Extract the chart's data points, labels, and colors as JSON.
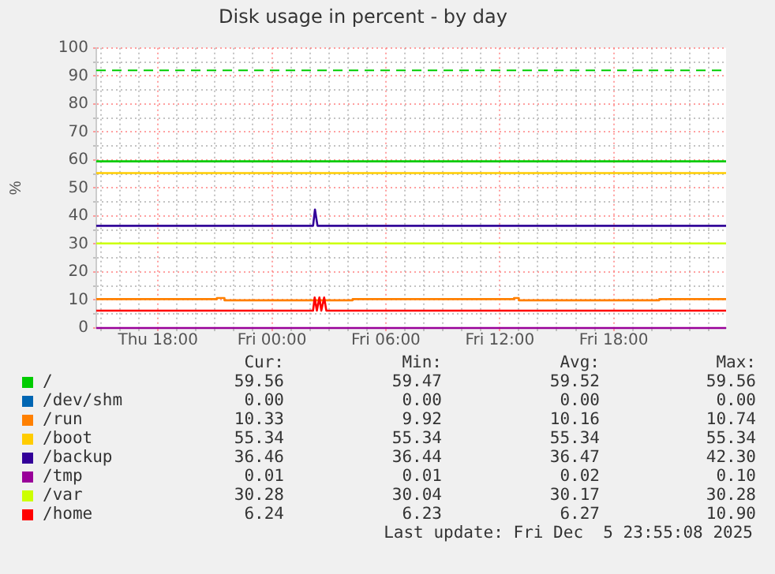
{
  "chart_data": {
    "type": "line",
    "title": "Disk usage in percent - by day",
    "ylabel": "%",
    "xlim": [
      "2025-12-04T14:45",
      "2025-12-05T23:55"
    ],
    "ylim": [
      0,
      100
    ],
    "xticks": [
      {
        "value": "2025-12-04T15:00",
        "label": null
      },
      {
        "value": "2025-12-04T16:00",
        "label": null
      },
      {
        "value": "2025-12-04T17:00",
        "label": null
      },
      {
        "value": "2025-12-04T18:00",
        "label": "Thu 18:00"
      },
      {
        "value": "2025-12-04T19:00",
        "label": null
      },
      {
        "value": "2025-12-04T20:00",
        "label": null
      },
      {
        "value": "2025-12-04T21:00",
        "label": null
      },
      {
        "value": "2025-12-04T22:00",
        "label": null
      },
      {
        "value": "2025-12-04T23:00",
        "label": null
      },
      {
        "value": "2025-12-05T00:00",
        "label": "Fri 00:00"
      },
      {
        "value": "2025-12-05T01:00",
        "label": null
      },
      {
        "value": "2025-12-05T02:00",
        "label": null
      },
      {
        "value": "2025-12-05T03:00",
        "label": null
      },
      {
        "value": "2025-12-05T04:00",
        "label": null
      },
      {
        "value": "2025-12-05T05:00",
        "label": null
      },
      {
        "value": "2025-12-05T06:00",
        "label": "Fri 06:00"
      },
      {
        "value": "2025-12-05T07:00",
        "label": null
      },
      {
        "value": "2025-12-05T08:00",
        "label": null
      },
      {
        "value": "2025-12-05T09:00",
        "label": null
      },
      {
        "value": "2025-12-05T10:00",
        "label": null
      },
      {
        "value": "2025-12-05T11:00",
        "label": null
      },
      {
        "value": "2025-12-05T12:00",
        "label": "Fri 12:00"
      },
      {
        "value": "2025-12-05T13:00",
        "label": null
      },
      {
        "value": "2025-12-05T14:00",
        "label": null
      },
      {
        "value": "2025-12-05T15:00",
        "label": null
      },
      {
        "value": "2025-12-05T16:00",
        "label": null
      },
      {
        "value": "2025-12-05T17:00",
        "label": null
      },
      {
        "value": "2025-12-05T18:00",
        "label": "Fri 18:00"
      },
      {
        "value": "2025-12-05T19:00",
        "label": null
      },
      {
        "value": "2025-12-05T20:00",
        "label": null
      },
      {
        "value": "2025-12-05T21:00",
        "label": null
      },
      {
        "value": "2025-12-05T22:00",
        "label": null
      },
      {
        "value": "2025-12-05T23:00",
        "label": null
      }
    ],
    "yticks": [
      0,
      {
        "value": 5,
        "label": null
      },
      10,
      {
        "value": 15,
        "label": null
      },
      20,
      {
        "value": 25,
        "label": null
      },
      30,
      {
        "value": 35,
        "label": null
      },
      40,
      {
        "value": 45,
        "label": null
      },
      50,
      {
        "value": 55,
        "label": null
      },
      60,
      {
        "value": 65,
        "label": null
      },
      70,
      {
        "value": 75,
        "label": null
      },
      80,
      {
        "value": 85,
        "label": null
      },
      90,
      {
        "value": 95,
        "label": null
      },
      100
    ],
    "grid": true,
    "legend": "bottom",
    "marker": "none",
    "line_style": "solid",
    "ref_lines": [
      {
        "axis": "y",
        "value": 92,
        "color": "#00cc00",
        "line_style": "dashed"
      }
    ],
    "series": [
      {
        "name": "/",
        "color": "#00cc00",
        "x": [
          "2025-12-04T14:45",
          "2025-12-05T23:55"
        ],
        "values": [
          59.5,
          59.5
        ]
      },
      {
        "name": "/dev/shm",
        "color": "#0066b3"
      },
      {
        "name": "/run",
        "color": "#ff8000",
        "x": [
          "2025-12-04T14:45",
          "2025-12-04T21:06",
          "2025-12-04T21:06",
          "2025-12-04T21:30",
          "2025-12-04T21:30",
          "2025-12-05T04:15",
          "2025-12-05T04:15",
          "2025-12-05T12:45",
          "2025-12-05T12:45",
          "2025-12-05T13:00",
          "2025-12-05T13:00",
          "2025-12-05T20:24",
          "2025-12-05T20:24",
          "2025-12-05T23:55"
        ],
        "values": [
          10.3,
          10.3,
          10.7,
          10.7,
          9.9,
          9.9,
          10.3,
          10.3,
          10.7,
          10.7,
          9.9,
          9.9,
          10.3,
          10.3
        ]
      },
      {
        "name": "/boot",
        "color": "#ffcc00",
        "x": [
          "2025-12-04T14:45",
          "2025-12-05T23:55"
        ],
        "values": [
          55.3,
          55.3
        ]
      },
      {
        "name": "/backup",
        "color": "#330099",
        "x": [
          "2025-12-04T14:45",
          "2025-12-05T02:10",
          "2025-12-05T02:16",
          "2025-12-05T02:24",
          "2025-12-05T23:55"
        ],
        "values": [
          36.5,
          36.5,
          42.3,
          36.5,
          36.5
        ]
      },
      {
        "name": "/tmp",
        "color": "#990099",
        "x": [
          "2025-12-04T14:45",
          "2025-12-05T23:55"
        ],
        "values": [
          0,
          0
        ]
      },
      {
        "name": "/var",
        "color": "#ccff00",
        "x": [
          "2025-12-04T14:45",
          "2025-12-05T23:55"
        ],
        "values": [
          30.2,
          30.2
        ]
      },
      {
        "name": "/home",
        "color": "#ff0000",
        "x": [
          "2025-12-04T14:45",
          "2025-12-05T02:10",
          "2025-12-05T02:15",
          "2025-12-05T02:22",
          "2025-12-05T02:30",
          "2025-12-05T02:36",
          "2025-12-05T02:45",
          "2025-12-05T02:52",
          "2025-12-05T23:55"
        ],
        "values": [
          6.2,
          6.2,
          10.9,
          6.2,
          10.9,
          6.2,
          10.9,
          6.2,
          6.2
        ]
      }
    ],
    "annotations": [
      "Cur:",
      "Min:",
      "Avg:",
      "Max:",
      "59.56",
      "59.47",
      "59.52",
      "59.56",
      "0.00",
      "0.00",
      "0.00",
      "0.00",
      "10.33",
      "9.92",
      "10.16",
      "10.74",
      "55.34",
      "55.34",
      "55.34",
      "55.34",
      "36.46",
      "36.44",
      "36.47",
      "42.30",
      "0.01",
      "0.01",
      "0.02",
      "0.10",
      "30.28",
      "30.04",
      "30.17",
      "30.28",
      "6.24",
      "6.23",
      "6.27",
      "10.90",
      "Last update: Fri Dec  5 23:55:08 2025"
    ]
  }
}
